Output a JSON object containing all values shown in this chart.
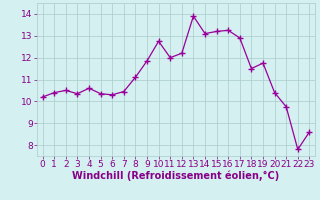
{
  "x": [
    0,
    1,
    2,
    3,
    4,
    5,
    6,
    7,
    8,
    9,
    10,
    11,
    12,
    13,
    14,
    15,
    16,
    17,
    18,
    19,
    20,
    21,
    22,
    23
  ],
  "y": [
    10.2,
    10.4,
    10.5,
    10.35,
    10.6,
    10.35,
    10.3,
    10.45,
    11.1,
    11.85,
    12.75,
    12.0,
    12.2,
    13.9,
    13.1,
    13.2,
    13.25,
    12.9,
    11.5,
    11.75,
    10.4,
    9.75,
    7.8,
    8.6
  ],
  "line_color": "#990099",
  "marker": "+",
  "marker_size": 4,
  "marker_linewidth": 1.0,
  "line_width": 0.9,
  "xlabel": "Windchill (Refroidissement éolien,°C)",
  "xlabel_fontsize": 7,
  "xlabel_color": "#880088",
  "xlim": [
    -0.5,
    23.5
  ],
  "ylim": [
    7.5,
    14.5
  ],
  "yticks": [
    8,
    9,
    10,
    11,
    12,
    13,
    14
  ],
  "xticks": [
    0,
    1,
    2,
    3,
    4,
    5,
    6,
    7,
    8,
    9,
    10,
    11,
    12,
    13,
    14,
    15,
    16,
    17,
    18,
    19,
    20,
    21,
    22,
    23
  ],
  "grid_color": "#aacccc",
  "background_color": "#d4f0f0",
  "tick_fontsize": 6.5,
  "tick_color": "#880088"
}
